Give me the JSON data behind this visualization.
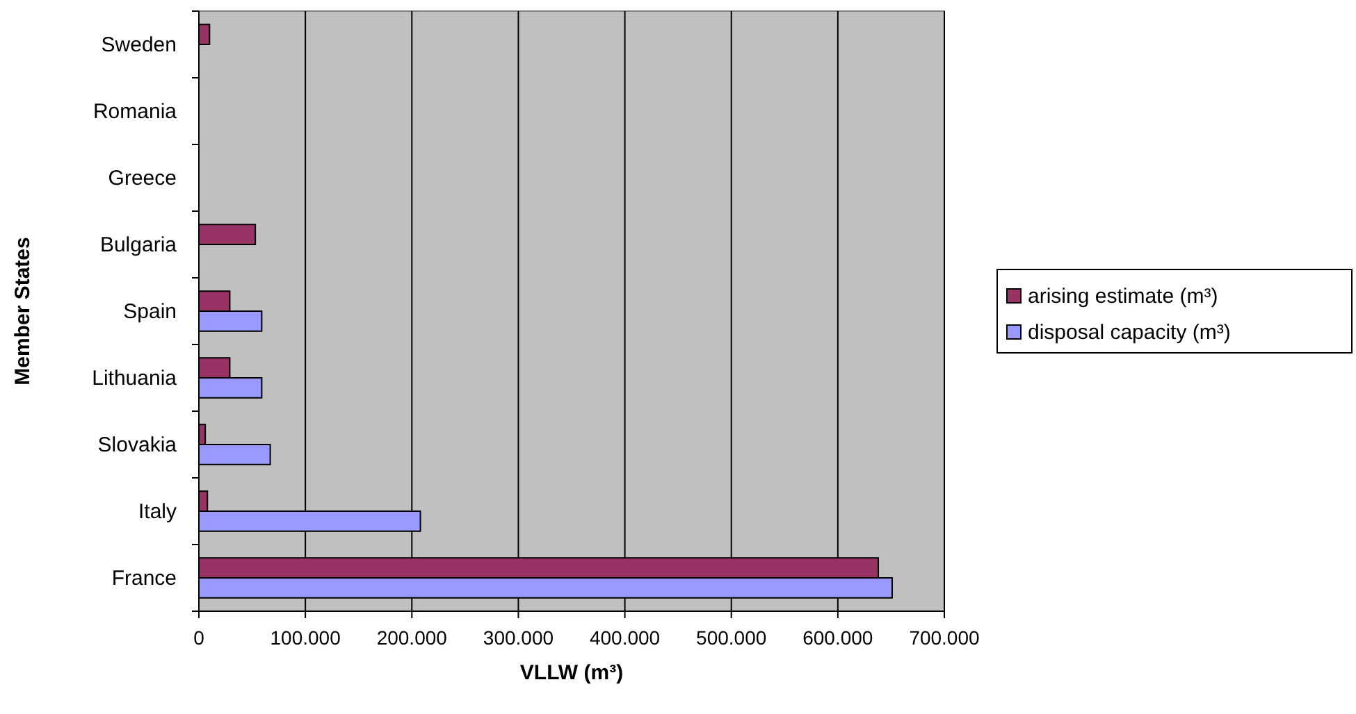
{
  "chart_data": {
    "type": "bar",
    "orientation": "horizontal",
    "xlabel": "VLLW (m³)",
    "ylabel": "Member States",
    "categories": [
      "Sweden",
      "Romania",
      "Greece",
      "Bulgaria",
      "Spain",
      "Lithuania",
      "Slovakia",
      "Italy",
      "France"
    ],
    "series": [
      {
        "name": "arising estimate (m³)",
        "color": "#993366",
        "values": [
          10000,
          null,
          null,
          53000,
          29000,
          29000,
          6000,
          8000,
          638000
        ]
      },
      {
        "name": "disposal capacity (m³)",
        "color": "#9999ff",
        "values": [
          null,
          null,
          null,
          null,
          59000,
          59000,
          67000,
          208000,
          651000
        ]
      }
    ],
    "xlim": [
      0,
      700000
    ],
    "xticks": [
      {
        "value": 0,
        "label": "0"
      },
      {
        "value": 100000,
        "label": "100.000"
      },
      {
        "value": 200000,
        "label": "200.000"
      },
      {
        "value": 300000,
        "label": "300.000"
      },
      {
        "value": 400000,
        "label": "400.000"
      },
      {
        "value": 500000,
        "label": "500.000"
      },
      {
        "value": 600000,
        "label": "600.000"
      },
      {
        "value": 700000,
        "label": "700.000"
      }
    ],
    "grid": "x",
    "legend": "right"
  }
}
